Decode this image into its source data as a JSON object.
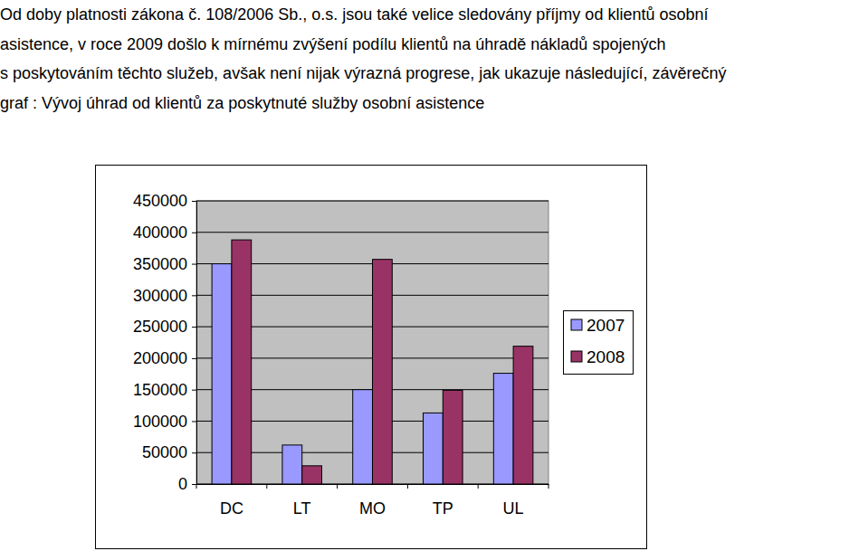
{
  "paragraph": [
    "Od doby platnosti zákona č. 108/2006 Sb., o.s. jsou také velice sledovány příjmy od klientů osobní",
    "asistence, v roce 2009 došlo k mírnému zvýšení podílu klientů na úhradě nákladů spojených",
    "s poskytováním těchto služeb, avšak není nijak výrazná progrese, jak ukazuje následující, závěrečný",
    "graf : Vývoj úhrad od klientů za poskytnuté služby osobní asistence"
  ],
  "chart_data": {
    "type": "bar",
    "categories": [
      "DC",
      "LT",
      "MO",
      "TP",
      "UL"
    ],
    "series": [
      {
        "name": "2007",
        "color": "#9999ff",
        "values": [
          350000,
          62000,
          150000,
          113000,
          176000
        ]
      },
      {
        "name": "2008",
        "color": "#993366",
        "values": [
          388000,
          29000,
          357000,
          149000,
          219000
        ]
      }
    ],
    "ylim": [
      0,
      450000
    ],
    "yticks": [
      0,
      50000,
      100000,
      150000,
      200000,
      250000,
      300000,
      350000,
      400000,
      450000
    ],
    "grid": true,
    "legend": "right"
  }
}
